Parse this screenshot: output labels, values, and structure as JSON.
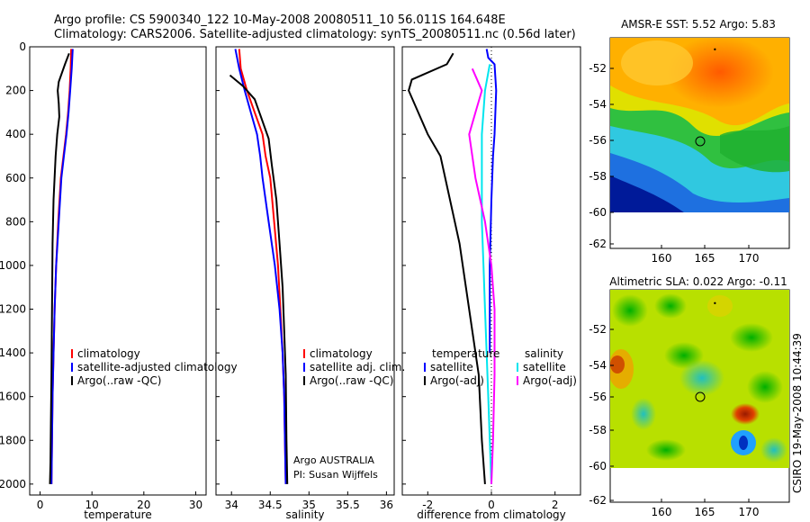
{
  "header": {
    "line1": "Argo profile: CS 5900340_122 10-May-2008 20080511_10 56.011S 164.648E",
    "line2": "Climatology: CARS2006. Satellite-adjusted climatology: synTS_20080511.nc (0.56d later)"
  },
  "chart_data": [
    {
      "type": "line",
      "xlabel": "temperature",
      "xlim": [
        -2,
        32
      ],
      "ylim": [
        0,
        2050
      ],
      "y_reversed": true,
      "xticks": [
        0,
        10,
        20,
        30
      ],
      "yticks": [
        0,
        200,
        400,
        600,
        800,
        1000,
        1200,
        1400,
        1600,
        1800,
        2000
      ],
      "legend": [
        "climatology",
        "satellite-adjusted climatology",
        "Argo(..raw -QC)"
      ],
      "series": [
        {
          "name": "climatology",
          "color": "#ff0000",
          "x": [
            6.0,
            5.9,
            5.7,
            5.4,
            5.0,
            4.5,
            4.0,
            3.5,
            3.1,
            2.8,
            2.6,
            2.4,
            2.3,
            2.2
          ],
          "y": [
            10,
            100,
            200,
            300,
            400,
            500,
            600,
            800,
            1000,
            1200,
            1400,
            1600,
            1800,
            2000
          ]
        },
        {
          "name": "satellite-adjusted climatology",
          "color": "#0000ff",
          "x": [
            6.3,
            6.1,
            5.8,
            5.5,
            5.1,
            4.6,
            4.1,
            3.6,
            3.1,
            2.8,
            2.6,
            2.4,
            2.3,
            2.2
          ],
          "y": [
            10,
            100,
            200,
            300,
            400,
            500,
            600,
            800,
            1000,
            1200,
            1400,
            1600,
            1800,
            2000
          ]
        },
        {
          "name": "Argo(..raw -QC)",
          "color": "#000000",
          "x": [
            5.6,
            4.8,
            3.6,
            3.4,
            3.6,
            3.7,
            3.3,
            3.0,
            2.6,
            2.4,
            2.3,
            2.2,
            2.1,
            2.0,
            1.9
          ],
          "y": [
            30,
            80,
            160,
            200,
            260,
            320,
            400,
            500,
            700,
            900,
            1200,
            1500,
            1700,
            1900,
            2000
          ]
        }
      ]
    },
    {
      "type": "line",
      "xlabel": "salinity",
      "xlim": [
        33.8,
        36.1
      ],
      "ylim": [
        0,
        2050
      ],
      "y_reversed": true,
      "xticks": [
        34,
        34.5,
        35,
        35.5,
        36
      ],
      "legend": [
        "climatology",
        "satellite adj. clim.",
        "Argo(..raw -QC)"
      ],
      "annotations": [
        "Argo AUSTRALIA",
        "PI: Susan Wijffels"
      ],
      "series": [
        {
          "name": "climatology",
          "color": "#ff0000",
          "x": [
            34.1,
            34.12,
            34.2,
            34.3,
            34.4,
            34.44,
            34.5,
            34.55,
            34.6,
            34.63,
            34.66,
            34.68,
            34.69,
            34.7
          ],
          "y": [
            10,
            100,
            200,
            300,
            400,
            500,
            600,
            800,
            1000,
            1200,
            1400,
            1600,
            1800,
            2000
          ]
        },
        {
          "name": "satellite adj. clim.",
          "color": "#0000ff",
          "x": [
            34.05,
            34.1,
            34.17,
            34.25,
            34.33,
            34.37,
            34.4,
            34.48,
            34.56,
            34.62,
            34.66,
            34.68,
            34.69,
            34.7
          ],
          "y": [
            10,
            100,
            200,
            300,
            400,
            500,
            600,
            800,
            1000,
            1200,
            1400,
            1600,
            1800,
            2000
          ]
        },
        {
          "name": "Argo(..raw -QC)",
          "color": "#000000",
          "x": [
            33.98,
            34.15,
            34.3,
            34.36,
            34.48,
            34.52,
            34.58,
            34.62,
            34.66,
            34.68,
            34.7,
            34.71,
            34.72
          ],
          "y": [
            130,
            180,
            240,
            300,
            420,
            540,
            700,
            900,
            1100,
            1300,
            1500,
            1800,
            2000
          ]
        }
      ]
    },
    {
      "type": "line",
      "xlabel": "difference from climatology",
      "xlim": [
        -2.8,
        2.8
      ],
      "ylim": [
        0,
        2050
      ],
      "y_reversed": true,
      "xticks": [
        -2,
        0,
        2
      ],
      "legend": [
        "temperature",
        "satellite",
        "Argo(-adj)",
        "salinity",
        "satellite",
        "Argo(-adj)"
      ],
      "series": [
        {
          "name": "temperature satellite",
          "color": "#0000ff",
          "x": [
            -0.15,
            -0.1,
            0.1,
            0.15,
            0.1,
            0.05,
            0.0,
            -0.05,
            -0.05,
            -0.05
          ],
          "y": [
            10,
            50,
            80,
            200,
            400,
            500,
            700,
            1000,
            1200,
            1400
          ]
        },
        {
          "name": "temperature Argo(-adj)",
          "color": "#000000",
          "x": [
            -1.2,
            -1.4,
            -2.5,
            -2.6,
            -2.3,
            -2.0,
            -1.6,
            -1.3,
            -1.0,
            -0.8,
            -0.6,
            -0.4,
            -0.3,
            -0.2
          ],
          "y": [
            30,
            80,
            150,
            200,
            300,
            400,
            500,
            700,
            900,
            1100,
            1300,
            1500,
            1800,
            2000
          ]
        },
        {
          "name": "salinity satellite",
          "color": "#00e5ee",
          "x": [
            -0.05,
            -0.2,
            -0.3,
            -0.3,
            -0.3,
            -0.25,
            -0.2,
            -0.15,
            -0.1,
            -0.05,
            0.0
          ],
          "y": [
            80,
            200,
            400,
            600,
            800,
            1000,
            1200,
            1400,
            1600,
            1800,
            2000
          ]
        },
        {
          "name": "salinity Argo(-adj)",
          "color": "#ff00ff",
          "x": [
            -0.6,
            -0.3,
            -0.5,
            -0.7,
            -0.5,
            -0.2,
            0.0,
            0.1,
            0.1,
            0.05,
            0.0
          ],
          "y": [
            100,
            200,
            300,
            400,
            600,
            800,
            1000,
            1200,
            1500,
            1800,
            2000
          ]
        }
      ]
    }
  ],
  "maps": [
    {
      "title": "AMSR-E SST: 5.52 Argo: 5.83",
      "xticks": [
        "160",
        "165",
        "170"
      ],
      "yticks": [
        "-52",
        "-54",
        "-56",
        "-58",
        "-60",
        "-62"
      ],
      "float_marker": {
        "lon": 164.648,
        "lat": -56.011
      }
    },
    {
      "title": "Altimetric SLA: 0.022 Argo: -0.11",
      "xticks": [
        "160",
        "165",
        "170"
      ],
      "yticks": [
        "-52",
        "-54",
        "-56",
        "-58",
        "-60",
        "-62"
      ],
      "float_marker": {
        "lon": 164.648,
        "lat": -56.011
      }
    }
  ],
  "timestamp": "CSIRO 19-May-2008 10:44:39"
}
